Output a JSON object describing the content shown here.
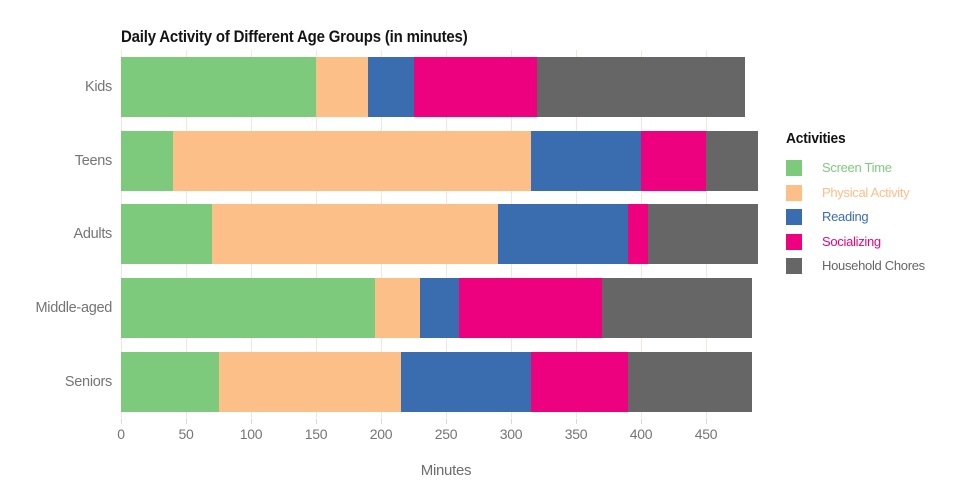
{
  "chart_data": {
    "type": "bar",
    "orientation": "horizontal",
    "stacked": true,
    "title": "Daily Activity of Different Age Groups (in minutes)",
    "xlabel": "Minutes",
    "ylabel": "",
    "legend_title": "Activities",
    "legend_position": "right",
    "grid": true,
    "xlim": [
      0,
      500
    ],
    "x_ticks": [
      0,
      50,
      100,
      150,
      200,
      250,
      300,
      350,
      400,
      450
    ],
    "categories": [
      "Kids",
      "Teens",
      "Adults",
      "Middle-aged",
      "Seniors"
    ],
    "series": [
      {
        "name": "Screen Time",
        "color": "#7dca7d",
        "values": [
          150,
          40,
          70,
          195,
          75
        ]
      },
      {
        "name": "Physical Activity",
        "color": "#fcbf87",
        "values": [
          40,
          275,
          220,
          35,
          140
        ]
      },
      {
        "name": "Reading",
        "color": "#3a6cb0",
        "values": [
          35,
          85,
          100,
          30,
          100
        ]
      },
      {
        "name": "Socializing",
        "color": "#ee017e",
        "values": [
          95,
          50,
          15,
          110,
          75
        ]
      },
      {
        "name": "Household Chores",
        "color": "#666666",
        "values": [
          160,
          40,
          85,
          115,
          95
        ]
      }
    ],
    "colors": {
      "gridline": "#f3e6e1",
      "tick_mark": "#d9d9d9",
      "axis_text": "#757575",
      "title_text": "#141414",
      "background": "#ffffff"
    }
  }
}
